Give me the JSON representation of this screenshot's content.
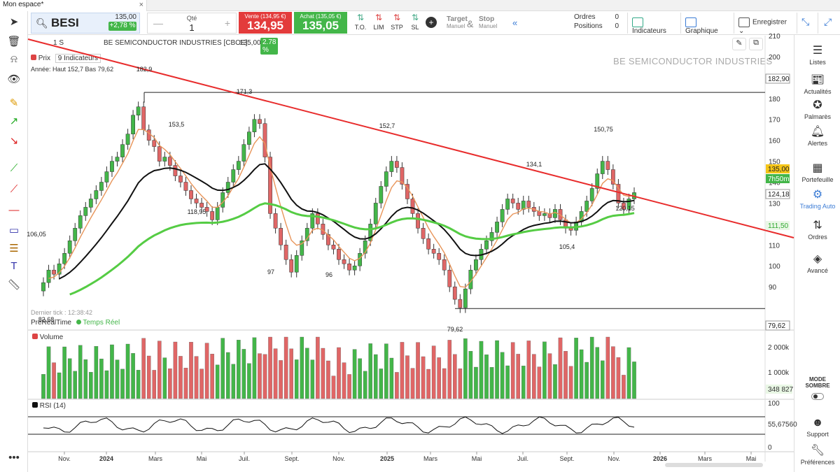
{
  "tab": {
    "title": "Mon espace*",
    "close": "×"
  },
  "symbol": {
    "name": "BESI",
    "price": "135,00",
    "change": "+2,78 %"
  },
  "quantity": {
    "label": "Qté",
    "value": "1",
    "minus": "—",
    "plus": "+"
  },
  "sell": {
    "label": "Vente (134,95 €)",
    "value": "134,95"
  },
  "buy": {
    "label": "Achat (135,05 €)",
    "value": "135,05"
  },
  "order_types": [
    {
      "label": "T.O."
    },
    {
      "label": "LIM"
    },
    {
      "label": "STP"
    },
    {
      "label": "SL"
    }
  ],
  "target": {
    "target": "Target",
    "target_sub": "Manuel",
    "amp": "&",
    "stop": "Stop",
    "stop_sub": "Manuel"
  },
  "order_info": {
    "orders_label": "Ordres",
    "orders_value": "0",
    "positions_label": "Positions",
    "positions_value": "0"
  },
  "toolbar": {
    "indicators": "Indicateurs",
    "graph": "Graphique",
    "save": "Enregistrer"
  },
  "chart_header": {
    "period": "1 S",
    "title": "BE SEMICONDUCTOR INDUSTRIES [CBOE]",
    "price": "135,00",
    "pct": "2.78 %"
  },
  "legend": {
    "price": "Prix",
    "indicators": "9 Indicateurs",
    "year_range": "Année: Haut 152,7 Bas 79,62"
  },
  "watermark": "BE SEMICONDUCTOR INDUSTRIES",
  "last_tick": "Dernier tick : 12:38:42",
  "realtime": {
    "prerealtime": "PreRealTime",
    "realtime": "Temps Réel"
  },
  "volume_title": "Volume",
  "rsi_title": "RSI (14)",
  "right_sidebar": [
    {
      "label": "Listes",
      "icon": "list-icon"
    },
    {
      "label": "Actualités",
      "icon": "news-icon"
    },
    {
      "label": "Palmarès",
      "icon": "award-icon"
    },
    {
      "label": "Alertes",
      "icon": "bell-icon"
    },
    {
      "label": "Portefeuille",
      "icon": "portfolio-icon"
    },
    {
      "label": "Trading Auto",
      "icon": "gears-icon"
    },
    {
      "label": "Ordres",
      "icon": "orders-icon"
    },
    {
      "label": "Avancé",
      "icon": "layers-icon"
    },
    {
      "label": "MODE SOMBRE",
      "icon": "toggle-icon"
    },
    {
      "label": "Support",
      "icon": "support-icon"
    },
    {
      "label": "Préférences",
      "icon": "wrench-icon"
    }
  ],
  "colors": {
    "up": "#43b649",
    "down": "#e06666",
    "ema_fast": "#e8955a",
    "ema_mid": "#111111",
    "ema_slow": "#55cc44",
    "trendline": "#e82c2c"
  },
  "chart_data": {
    "type": "candlestick",
    "title": "BE SEMICONDUCTOR INDUSTRIES [CBOE]",
    "ylim": [
      70,
      210
    ],
    "y_ticks": [
      90,
      100,
      110,
      120,
      130,
      140,
      150,
      160,
      170,
      180,
      190,
      200,
      210
    ],
    "x_labels": [
      "Nov.",
      "2024",
      "Mars",
      "Mai",
      "Juil.",
      "Sept.",
      "Nov.",
      "2025",
      "Mars",
      "Mai",
      "Juil.",
      "Sept.",
      "Nov.",
      "2026",
      "Mars",
      "Mai"
    ],
    "price_labels": [
      "182,90",
      "135,00",
      "7h50m",
      "124,18",
      "111,50",
      "79,62"
    ],
    "annotations": [
      "182,9",
      "171,3",
      "153,5",
      "152,7",
      "134,1",
      "150,75",
      "106,05",
      "118,95",
      "97",
      "96",
      "105,4",
      "120,15",
      "82,68",
      "79,62"
    ],
    "volume_ticks": [
      "2 000k",
      "1 000k"
    ],
    "volume_last": "348 827",
    "rsi_ticks": [
      "100",
      "0"
    ],
    "rsi_value": "55,67560",
    "closes": [
      92,
      98,
      96,
      101,
      106,
      112,
      118,
      124,
      128,
      132,
      136,
      140,
      145,
      150,
      152,
      158,
      163,
      172,
      176,
      165,
      160,
      157,
      150,
      152,
      148,
      143,
      140,
      136,
      132,
      130,
      128,
      126,
      122,
      128,
      135,
      140,
      146,
      150,
      158,
      164,
      170,
      168,
      152,
      125,
      118,
      110,
      103,
      97,
      105,
      112,
      118,
      125,
      120,
      115,
      110,
      108,
      103,
      101,
      98,
      100,
      106,
      112,
      120,
      130,
      138,
      145,
      150,
      147,
      139,
      132,
      125,
      118,
      113,
      108,
      106,
      103,
      98,
      90,
      84,
      80,
      89,
      98,
      103,
      108,
      112,
      116,
      121,
      127,
      132,
      130,
      127,
      131,
      128,
      126,
      124,
      125,
      123,
      127,
      122,
      118,
      117,
      121,
      126,
      131,
      137,
      144,
      150,
      146,
      139,
      130,
      127,
      132,
      135
    ]
  }
}
